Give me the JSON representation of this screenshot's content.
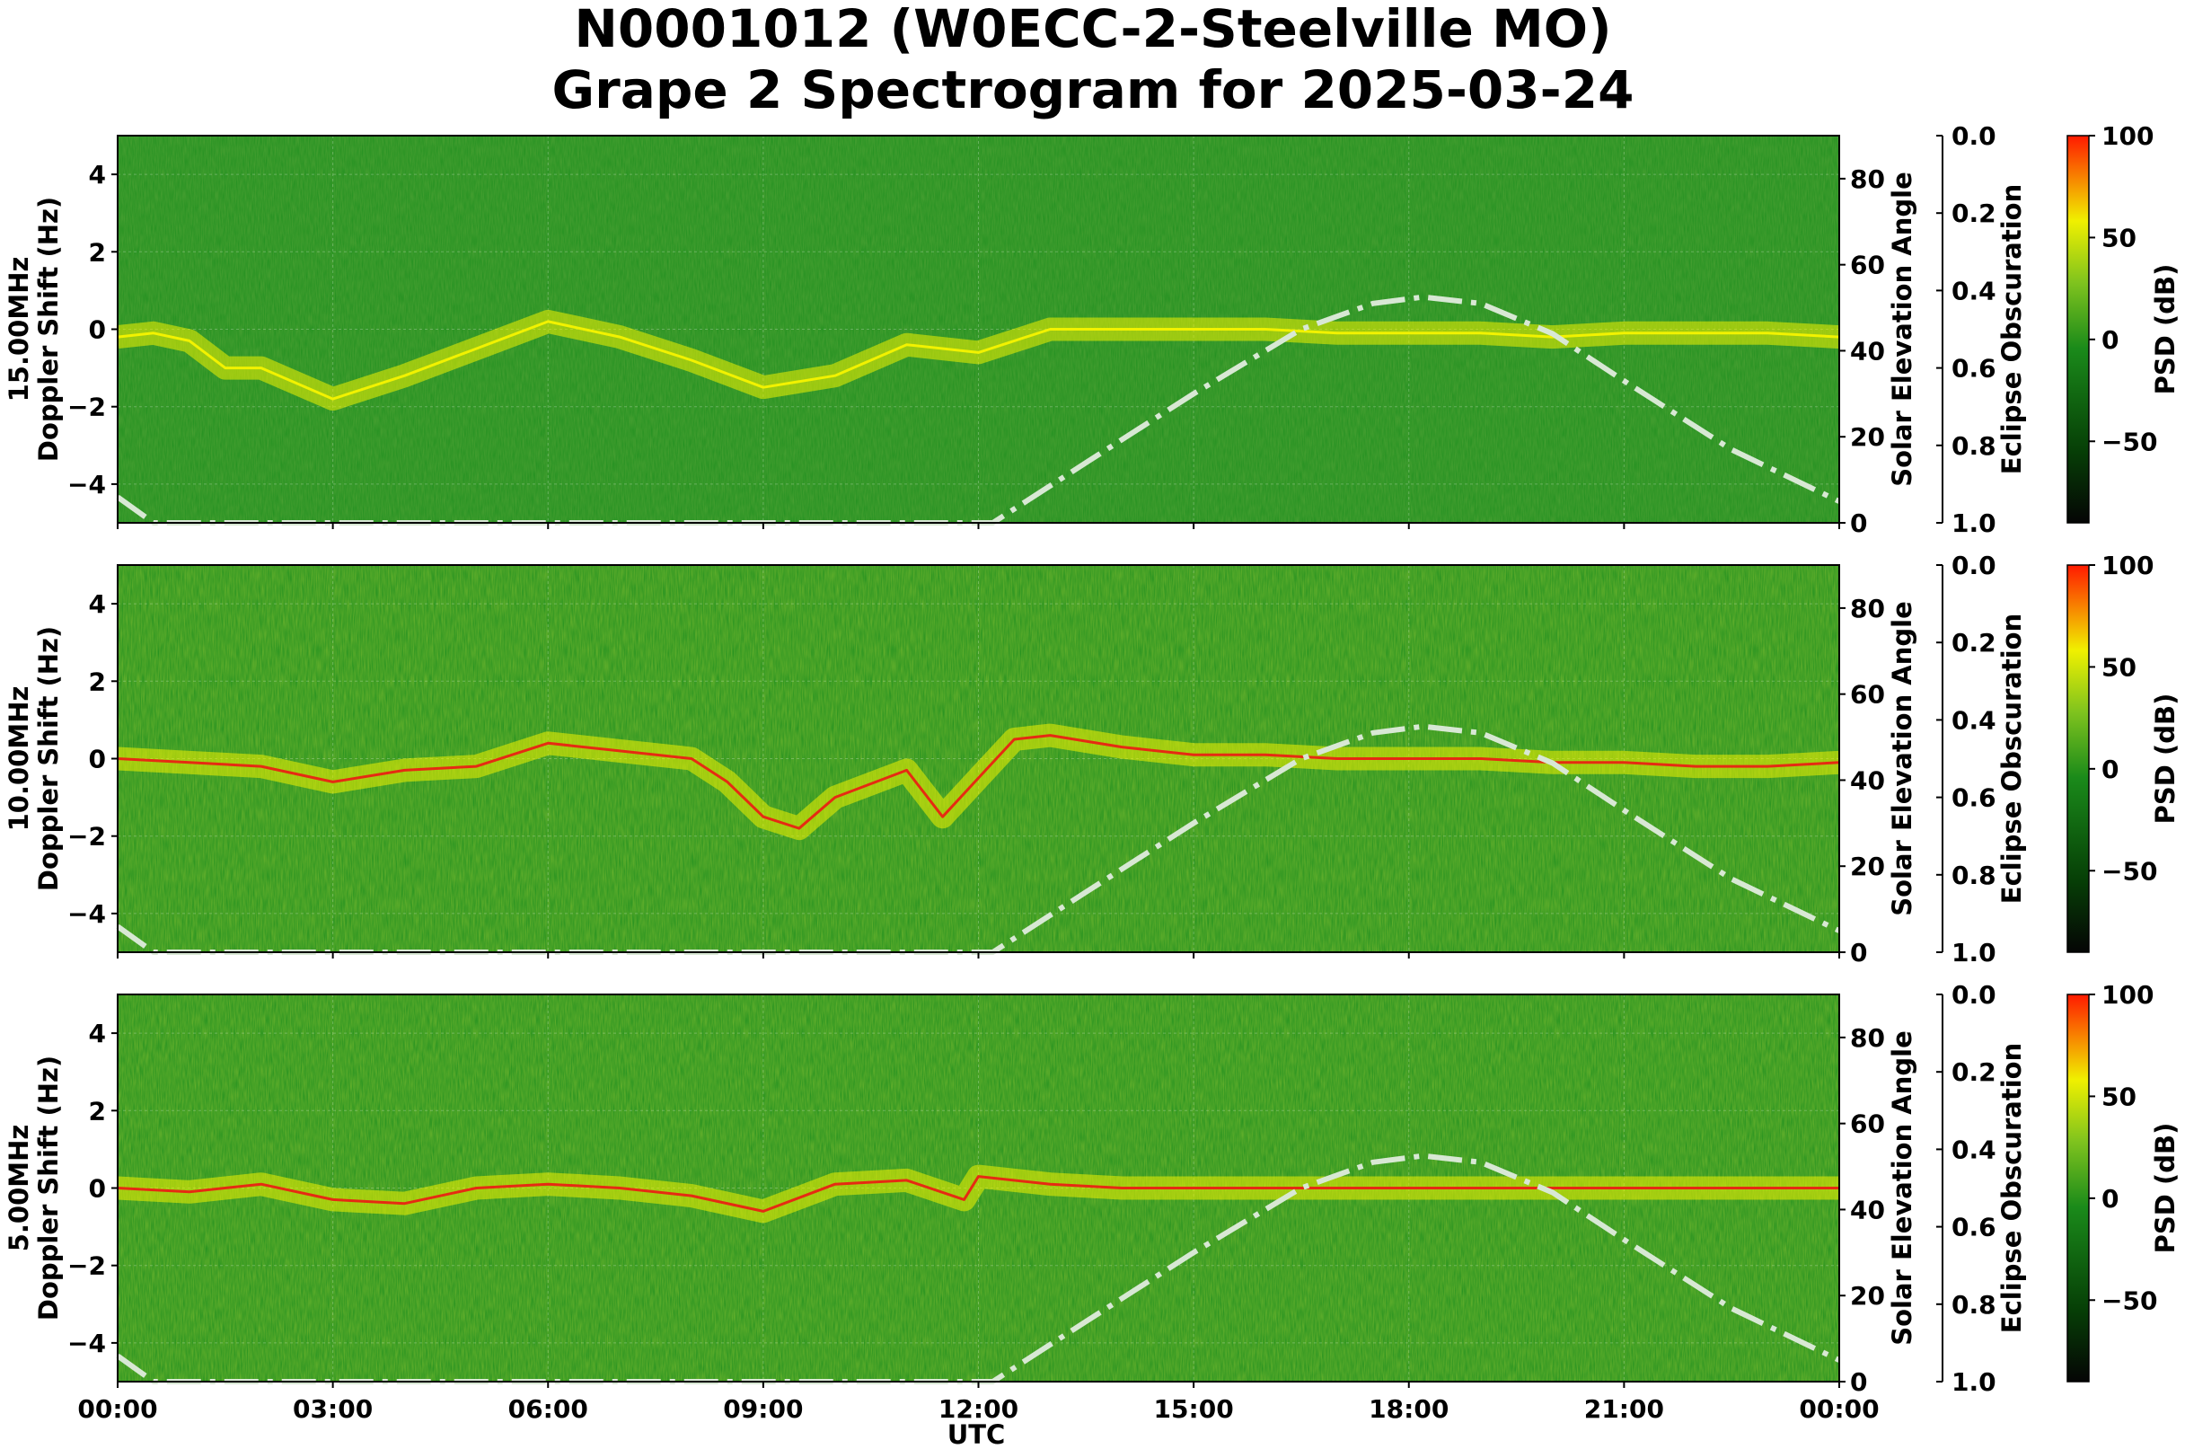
{
  "title_line1": "N0001012 (W0ECC-2-Steelville MO)",
  "title_line2": "Grape 2 Spectrogram for 2025-03-24",
  "colors": {
    "background_green": "#1f8f1f",
    "trace_yellow": "#f2f200",
    "trace_red": "#e62a12",
    "solar_curve": "#d8e8d4"
  },
  "chart_data": {
    "type": "heatmap",
    "xlabel": "UTC",
    "x_ticks": [
      "00:00",
      "03:00",
      "06:00",
      "09:00",
      "12:00",
      "15:00",
      "18:00",
      "21:00",
      "00:00"
    ],
    "xlim_hours": [
      0,
      24
    ],
    "grid": true,
    "right_axis_label": "Solar Elevation Angle",
    "right_axis_ticks": [
      "0",
      "20",
      "40",
      "60",
      "80"
    ],
    "right_axis_lim": [
      0,
      90
    ],
    "eclipse_axis_label": "Eclipse Obscuration",
    "eclipse_ticks": [
      "0.0",
      "0.2",
      "0.4",
      "0.6",
      "0.8",
      "1.0"
    ],
    "colorbar_label": "PSD (dB)",
    "colorbar_ticks": [
      "100",
      "50",
      "0",
      "−50"
    ],
    "colorbar_range": [
      -90,
      100
    ],
    "y_ticks": [
      "4",
      "2",
      "0",
      "−2",
      "−4"
    ],
    "ylim": [
      -5,
      5
    ],
    "panels": [
      {
        "frequency": "15.00MHz",
        "ylabel": "Doppler Shift (Hz)",
        "doppler_trace": {
          "hours": [
            0,
            0.5,
            1,
            1.5,
            2,
            3,
            4,
            5,
            6,
            7,
            8,
            9,
            10,
            11,
            12,
            13,
            14,
            15,
            16,
            17,
            18,
            19,
            20,
            21,
            22,
            23,
            24
          ],
          "hz": [
            -0.2,
            -0.1,
            -0.3,
            -1.0,
            -1.0,
            -1.8,
            -1.2,
            -0.5,
            0.2,
            -0.2,
            -0.8,
            -1.5,
            -1.2,
            -0.4,
            -0.6,
            0.0,
            0.0,
            0.0,
            0.0,
            -0.1,
            -0.1,
            -0.1,
            -0.2,
            -0.1,
            -0.1,
            -0.1,
            -0.2
          ]
        },
        "solar_elevation": {
          "hours": [
            0,
            0.5,
            12.2,
            13.5,
            15,
            16.5,
            17.5,
            18.2,
            19,
            20,
            21,
            22.5,
            24
          ],
          "deg": [
            6,
            0,
            0,
            14,
            30,
            45,
            51,
            52.5,
            51,
            44,
            33,
            17,
            5
          ]
        }
      },
      {
        "frequency": "10.00MHz",
        "ylabel": "Doppler Shift (Hz)",
        "doppler_trace": {
          "hours": [
            0,
            1,
            2,
            3,
            4,
            5,
            6,
            7,
            8,
            8.5,
            9,
            9.5,
            10,
            11,
            11.5,
            12,
            12.5,
            13,
            14,
            15,
            16,
            17,
            18,
            19,
            20,
            21,
            22,
            23,
            24
          ],
          "hz": [
            0.0,
            -0.1,
            -0.2,
            -0.6,
            -0.3,
            -0.2,
            0.4,
            0.2,
            0.0,
            -0.6,
            -1.5,
            -1.8,
            -1.0,
            -0.3,
            -1.5,
            -0.5,
            0.5,
            0.6,
            0.3,
            0.1,
            0.1,
            0.0,
            0.0,
            0.0,
            -0.1,
            -0.1,
            -0.2,
            -0.2,
            -0.1
          ]
        },
        "solar_elevation": {
          "hours": [
            0,
            0.5,
            12.2,
            13.5,
            15,
            16.5,
            17.5,
            18.2,
            19,
            20,
            21,
            22.5,
            24
          ],
          "deg": [
            6,
            0,
            0,
            14,
            30,
            45,
            51,
            52.5,
            51,
            44,
            33,
            17,
            5
          ]
        }
      },
      {
        "frequency": "5.00MHz",
        "ylabel": "Doppler Shift (Hz)",
        "doppler_trace": {
          "hours": [
            0,
            1,
            2,
            3,
            4,
            5,
            6,
            7,
            8,
            9,
            10,
            11,
            11.8,
            12,
            13,
            14,
            15,
            16,
            17,
            18,
            19,
            20,
            21,
            22,
            23,
            24
          ],
          "hz": [
            0.0,
            -0.1,
            0.1,
            -0.3,
            -0.4,
            0.0,
            0.1,
            0.0,
            -0.2,
            -0.6,
            0.1,
            0.2,
            -0.3,
            0.3,
            0.1,
            0.0,
            0.0,
            0.0,
            0.0,
            0.0,
            0.0,
            0.0,
            0.0,
            0.0,
            0.0,
            0.0
          ]
        },
        "solar_elevation": {
          "hours": [
            0,
            0.5,
            12.2,
            13.5,
            15,
            16.5,
            17.5,
            18.2,
            19,
            20,
            21,
            22.5,
            24
          ],
          "deg": [
            6,
            0,
            0,
            14,
            30,
            45,
            51,
            52.5,
            51,
            44,
            33,
            17,
            5
          ]
        }
      }
    ]
  }
}
